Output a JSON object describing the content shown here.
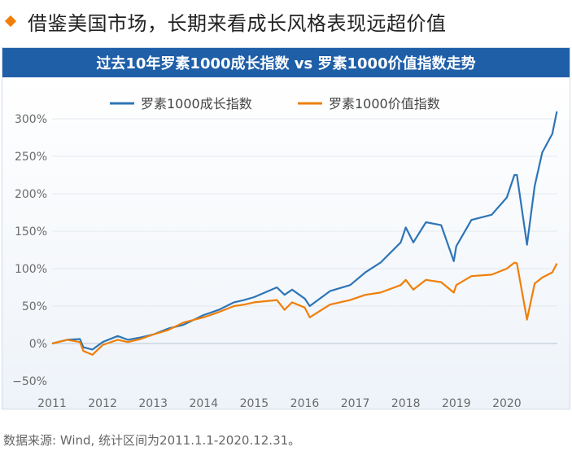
{
  "heading": {
    "icon": "orange-diamond-icon",
    "text": "借鉴美国市场，长期来看成长风格表现远超价值"
  },
  "footer": {
    "source": "数据来源: Wind, 统计区间为2011.1.1-2020.12.31。"
  },
  "colors": {
    "banner": "#1f5fa8",
    "growth": "#2e75b6",
    "value": "#f07f09",
    "diamond": "#f07f09"
  },
  "chart_data": {
    "type": "line",
    "title": "过去10年罗素1000成长指数 vs 罗素1000价值指数走势",
    "xlabel": "",
    "ylabel": "",
    "x_ticks": [
      "2011",
      "2012",
      "2013",
      "2014",
      "2015",
      "2016",
      "2017",
      "2018",
      "2019",
      "2020"
    ],
    "y_ticks": [
      "300%",
      "250%",
      "200%",
      "150%",
      "100%",
      "50%",
      "0%",
      "−50%"
    ],
    "ylim": [
      -50,
      300
    ],
    "grid": "horizontal",
    "legend_position": "top-center",
    "x": [
      2011.0,
      2011.3,
      2011.55,
      2011.62,
      2011.8,
      2012.0,
      2012.3,
      2012.5,
      2012.75,
      2013.0,
      2013.3,
      2013.6,
      2014.0,
      2014.3,
      2014.6,
      2014.8,
      2015.0,
      2015.45,
      2015.6,
      2015.75,
      2016.0,
      2016.1,
      2016.5,
      2016.9,
      2017.2,
      2017.5,
      2017.9,
      2018.0,
      2018.15,
      2018.4,
      2018.7,
      2018.95,
      2019.0,
      2019.3,
      2019.7,
      2020.0,
      2020.15,
      2020.2,
      2020.4,
      2020.55,
      2020.7,
      2020.9,
      2020.99
    ],
    "series": [
      {
        "name": "罗素1000成长指数",
        "values": [
          0,
          5,
          6,
          -5,
          -8,
          2,
          10,
          5,
          8,
          12,
          20,
          25,
          38,
          45,
          55,
          58,
          62,
          75,
          65,
          72,
          60,
          50,
          70,
          78,
          95,
          108,
          135,
          155,
          135,
          162,
          158,
          110,
          130,
          165,
          172,
          195,
          225,
          225,
          132,
          210,
          255,
          280,
          310
        ]
      },
      {
        "name": "罗素1000价值指数",
        "values": [
          0,
          5,
          2,
          -10,
          -15,
          -2,
          5,
          2,
          6,
          12,
          18,
          28,
          35,
          42,
          50,
          52,
          55,
          58,
          45,
          55,
          48,
          35,
          52,
          58,
          65,
          68,
          78,
          85,
          72,
          85,
          82,
          68,
          78,
          90,
          92,
          100,
          108,
          107,
          32,
          80,
          88,
          95,
          107
        ]
      }
    ]
  }
}
